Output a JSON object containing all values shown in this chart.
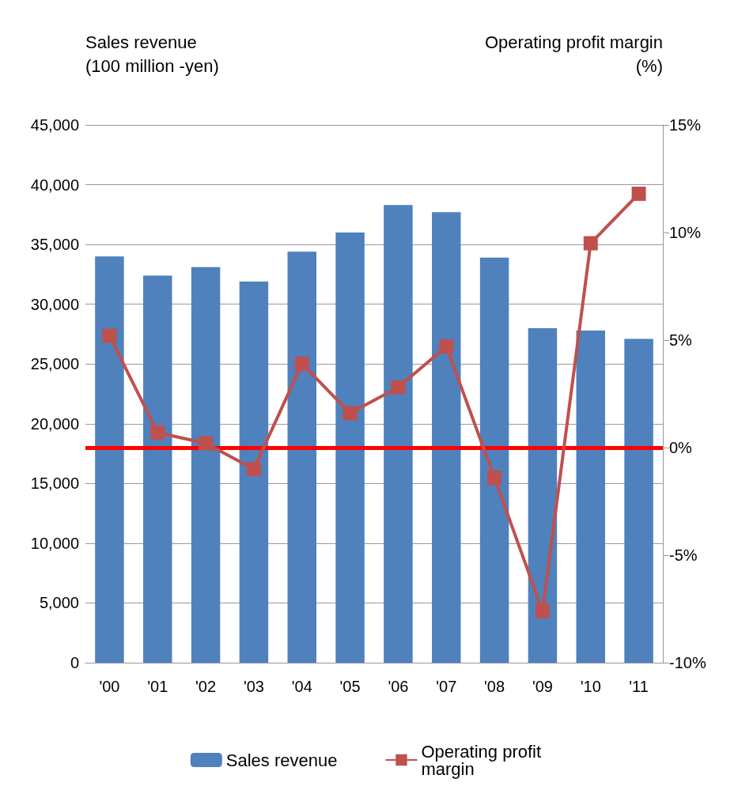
{
  "chart_data": {
    "type": "bar",
    "ylabel": "Sales revenue\n(100 million -yen)",
    "y2label": "Operating profit margin\n(%)",
    "categories": [
      "'00",
      "'01",
      "'02",
      "'03",
      "'04",
      "'05",
      "'06",
      "'07",
      "'08",
      "'09",
      "'10",
      "'11"
    ],
    "series": [
      {
        "name": "Sales revenue",
        "color": "#4f81bd",
        "values": [
          34000,
          32400,
          33100,
          31900,
          34400,
          36000,
          38300,
          37700,
          33900,
          28000,
          27800,
          27100
        ]
      },
      {
        "name": "Operating profit margin",
        "type": "line",
        "axis": "y2",
        "color": "#c0504d",
        "marker": "square",
        "line_style": "solid",
        "values": [
          5.2,
          0.7,
          0.2,
          -1.0,
          3.9,
          1.6,
          2.8,
          4.7,
          -1.4,
          -7.6,
          9.5,
          11.8
        ]
      }
    ],
    "ylim": [
      0,
      45000
    ],
    "yticks": [
      {
        "value": 0,
        "label": "0"
      },
      {
        "value": 5000,
        "label": "5,000"
      },
      {
        "value": 10000,
        "label": "10,000"
      },
      {
        "value": 15000,
        "label": "15,000"
      },
      {
        "value": 20000,
        "label": "20,000"
      },
      {
        "value": 25000,
        "label": "25,000"
      },
      {
        "value": 30000,
        "label": "30,000"
      },
      {
        "value": 35000,
        "label": "35,000"
      },
      {
        "value": 40000,
        "label": "40,000"
      },
      {
        "value": 45000,
        "label": "45,000"
      }
    ],
    "y2lim": [
      -10,
      15
    ],
    "y2ticks": [
      {
        "value": -10,
        "label": "-10%"
      },
      {
        "value": -5,
        "label": "-5%"
      },
      {
        "value": 0,
        "label": "0%"
      },
      {
        "value": 5,
        "label": "5%"
      },
      {
        "value": 10,
        "label": "10%"
      },
      {
        "value": 15,
        "label": "15%"
      }
    ],
    "ref_lines": [
      {
        "axis": "y2",
        "value": 0,
        "color": "#ff0000"
      }
    ],
    "grid": "y",
    "legend": "bottom"
  }
}
